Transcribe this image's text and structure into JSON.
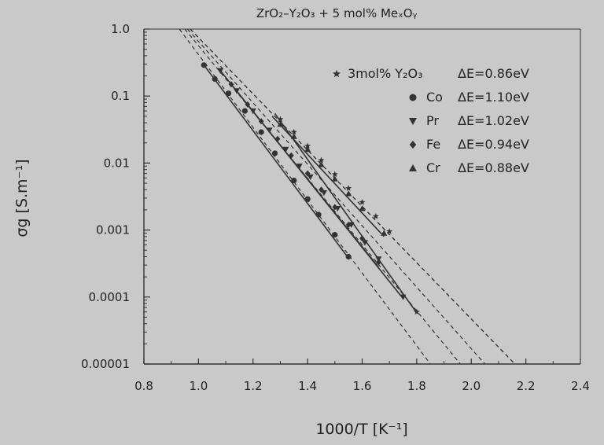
{
  "chart_data": {
    "type": "scatter",
    "title": "ZrO₂–Y₂O₃ + 5 mol% MeₓOᵧ",
    "xlabel": "1000/T [K⁻¹]",
    "ylabel": "σg [S.m⁻¹]",
    "xlim": [
      0.8,
      2.4
    ],
    "ylim": [
      1e-05,
      1.0
    ],
    "yscale": "log",
    "grid": false,
    "legend_position": "top-right",
    "x_ticks": [
      0.8,
      1.0,
      1.2,
      1.4,
      1.6,
      1.8,
      2.0,
      2.2,
      2.4
    ],
    "x_tick_labels": [
      "0.8",
      "1.0",
      "1.2",
      "1.4",
      "1.6",
      "1.8",
      "2.0",
      "2.2",
      "2.4"
    ],
    "y_ticks": [
      1e-05,
      0.0001,
      0.001,
      0.01,
      0.1,
      1.0
    ],
    "y_tick_labels": [
      "0.00001",
      "0.0001",
      "0.001",
      "0.01",
      "0.1",
      "1.0"
    ],
    "series": [
      {
        "name": "3mol% Y₂O₃",
        "activation": "ΔE=0.86eV",
        "marker": "star",
        "line": {
          "x": [
            1.28,
            1.8
          ],
          "y": [
            0.055,
            5.8e-05
          ]
        },
        "extrapolation": {
          "x": [
            0.97,
            2.16
          ],
          "y": [
            1.0,
            1e-05
          ]
        },
        "points": {
          "x": [
            1.3,
            1.35,
            1.4,
            1.45,
            1.5,
            1.55,
            1.6,
            1.65,
            1.7,
            1.8
          ],
          "y": [
            0.045,
            0.029,
            0.018,
            0.011,
            0.0068,
            0.0042,
            0.0026,
            0.0016,
            0.00095,
            6e-05
          ]
        }
      },
      {
        "name": "Co",
        "activation": "ΔE=1.10eV",
        "marker": "circle",
        "line": {
          "x": [
            1.02,
            1.55
          ],
          "y": [
            0.29,
            0.00038
          ]
        },
        "extrapolation": {
          "x": [
            0.93,
            1.85
          ],
          "y": [
            1.0,
            1e-05
          ]
        },
        "points": {
          "x": [
            1.02,
            1.06,
            1.11,
            1.17,
            1.23,
            1.28,
            1.35,
            1.4,
            1.44,
            1.5,
            1.55
          ],
          "y": [
            0.29,
            0.18,
            0.11,
            0.06,
            0.029,
            0.014,
            0.0055,
            0.0029,
            0.0017,
            0.00085,
            0.0004
          ]
        }
      },
      {
        "name": "Pr",
        "activation": "ΔE=1.02eV",
        "marker": "triangle-down",
        "line": {
          "x": [
            1.08,
            1.75
          ],
          "y": [
            0.24,
            9.5e-05
          ]
        },
        "extrapolation": {
          "x": [
            0.95,
            1.96
          ],
          "y": [
            1.0,
            1e-05
          ]
        },
        "points": {
          "x": [
            1.08,
            1.14,
            1.2,
            1.26,
            1.32,
            1.37,
            1.41,
            1.46,
            1.51,
            1.56,
            1.61,
            1.66,
            1.75
          ],
          "y": [
            0.24,
            0.12,
            0.06,
            0.031,
            0.016,
            0.009,
            0.0062,
            0.0036,
            0.0021,
            0.0012,
            0.00065,
            0.00037,
            0.0001
          ]
        }
      },
      {
        "name": "Fe",
        "activation": "ΔE=0.94eV",
        "marker": "diamond",
        "line": {
          "x": [
            1.12,
            1.66
          ],
          "y": [
            0.15,
            0.00028
          ]
        },
        "extrapolation": {
          "x": [
            0.96,
            2.05
          ],
          "y": [
            1.0,
            1e-05
          ]
        },
        "points": {
          "x": [
            1.12,
            1.18,
            1.23,
            1.29,
            1.34,
            1.4,
            1.45,
            1.5,
            1.55,
            1.6,
            1.66
          ],
          "y": [
            0.15,
            0.075,
            0.042,
            0.023,
            0.013,
            0.007,
            0.004,
            0.0022,
            0.0012,
            0.00075,
            0.00033
          ]
        }
      },
      {
        "name": "Cr",
        "activation": "ΔE=0.88eV",
        "marker": "triangle-up",
        "line": {
          "x": [
            1.27,
            1.68
          ],
          "y": [
            0.05,
            0.0008
          ]
        },
        "extrapolation": {
          "x": [
            0.97,
            2.16
          ],
          "y": [
            1.0,
            1e-05
          ]
        },
        "points": {
          "x": [
            1.3,
            1.35,
            1.4,
            1.45,
            1.5,
            1.55,
            1.6,
            1.68
          ],
          "y": [
            0.038,
            0.025,
            0.016,
            0.0095,
            0.0058,
            0.0035,
            0.0021,
            0.0009
          ]
        }
      }
    ]
  },
  "colors": {
    "background": "#c9c9c9",
    "ink": "#333333"
  }
}
